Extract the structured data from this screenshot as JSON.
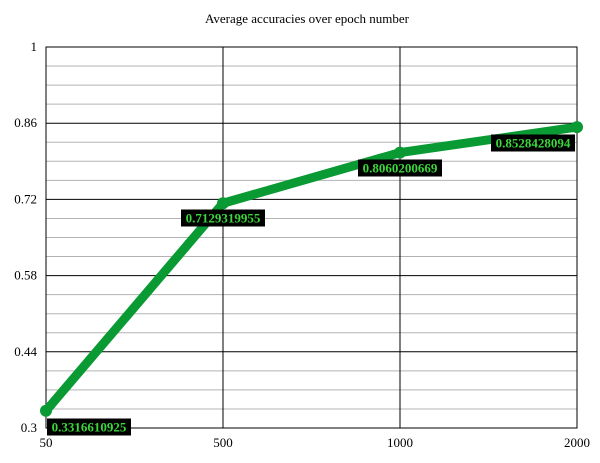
{
  "chart_data": {
    "type": "line",
    "title": "Average accuracies over epoch number",
    "xlabel": "",
    "ylabel": "",
    "categories": [
      "50",
      "500",
      "1000",
      "2000"
    ],
    "series": [
      {
        "values": [
          0.3316610925,
          0.7129319955,
          0.8060200669,
          0.8528428094
        ],
        "data_labels": [
          "0.3316610925",
          "0.7129319955",
          "0.8060200669",
          "0.8528428094"
        ]
      }
    ],
    "ylim": [
      0.3,
      1
    ],
    "yticks": [
      "0.3",
      "0.44",
      "0.58",
      "0.72",
      "0.86",
      "1"
    ],
    "grid": true,
    "legend": "none",
    "colors": {
      "line": "#0a9a34",
      "label_bg": "#000000",
      "label_text": "#3ad63a",
      "grid_major": "#000000",
      "grid_minor": "#b3b3b3"
    }
  }
}
